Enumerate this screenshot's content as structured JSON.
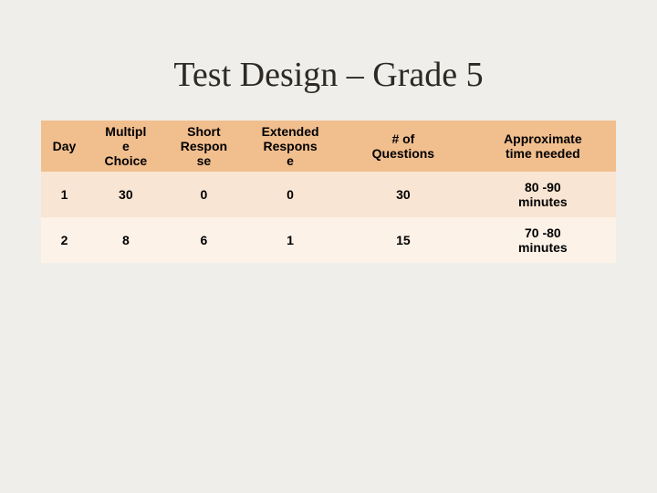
{
  "title": "Test Design – Grade 5",
  "columns": [
    "Day",
    "Multipl\ne\nChoice",
    "Short\nRespon\nse",
    "Extended\nRespons\ne",
    "# of\nQuestions",
    "Approximate\ntime needed"
  ],
  "rows": [
    [
      "1",
      "30",
      "0",
      "0",
      "30",
      "80 -90\nminutes"
    ],
    [
      "2",
      "8",
      "6",
      "1",
      "15",
      "70 -80\nminutes"
    ]
  ],
  "colors": {
    "slide_bg": "#efeeea",
    "header_bg": "#f1be8e",
    "row_odd_bg": "#f9e5d3",
    "row_even_bg": "#fcf2e8",
    "text": "#000000",
    "title_text": "#2d2a26"
  },
  "typography": {
    "title_font": "Georgia serif",
    "title_size_pt": 28,
    "body_font": "Arial",
    "body_size_pt": 11
  },
  "column_widths_pct": [
    7,
    11.5,
    12,
    14,
    20,
    22
  ]
}
